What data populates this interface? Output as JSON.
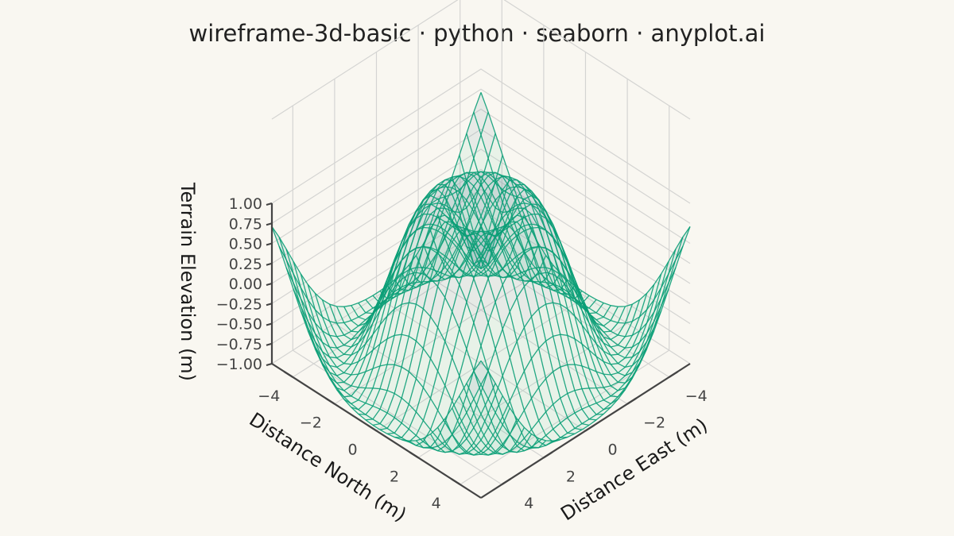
{
  "chart_data": {
    "type": "wireframe-3d",
    "title": "wireframe-3d-basic · python · seaborn · anyplot.ai",
    "xlabel": "Distance East (m)",
    "ylabel": "Distance North (m)",
    "zlabel": "Terrain Elevation (m)",
    "function": "z = sin(sqrt(x^2 + y^2))",
    "x_range": [
      -5,
      5
    ],
    "y_range": [
      -5,
      5
    ],
    "zlim": [
      -1,
      1
    ],
    "grid_points": 30,
    "x_ticks": [
      "−4",
      "−2",
      "0",
      "2",
      "4"
    ],
    "y_ticks": [
      "−4",
      "−2",
      "0",
      "2",
      "4"
    ],
    "z_ticks": [
      "−1.00",
      "−0.75",
      "−0.50",
      "−0.25",
      "0.00",
      "0.25",
      "0.50",
      "0.75",
      "1.00"
    ],
    "x_tick_values": [
      -4,
      -2,
      0,
      2,
      4
    ],
    "y_tick_values": [
      -4,
      -2,
      0,
      2,
      4
    ],
    "z_tick_values": [
      -1,
      -0.75,
      -0.5,
      -0.25,
      0,
      0.25,
      0.5,
      0.75,
      1
    ],
    "grid": true,
    "colors": {
      "line": "#0b9e77",
      "fill_light": "#7fcfb4",
      "fill_dark": "#6b8fa0",
      "pane_grid": "#d4d4d2",
      "axis_line": "#444444",
      "background": "#f9f7f1"
    }
  }
}
